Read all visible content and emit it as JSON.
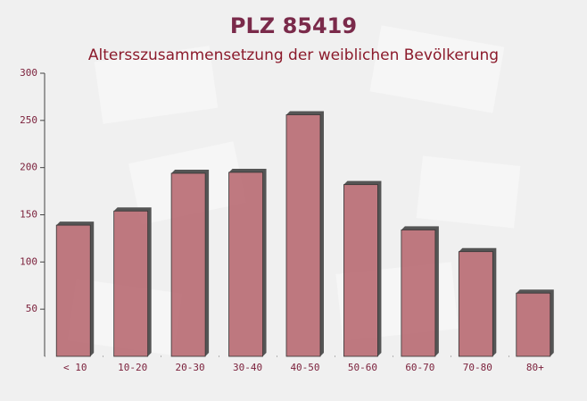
{
  "chart_data": {
    "type": "bar",
    "title": "PLZ 85419",
    "subtitle": "Altersszusammensetzung der weiblichen Bevölkerung",
    "categories": [
      "< 10",
      "10-20",
      "20-30",
      "30-40",
      "40-50",
      "50-60",
      "60-70",
      "70-80",
      "80+"
    ],
    "values": [
      139,
      154,
      194,
      195,
      256,
      182,
      134,
      111,
      67
    ],
    "color": "#b5636b",
    "ylim": [
      0,
      300
    ],
    "yticks": [
      50,
      100,
      150,
      200,
      250,
      300
    ]
  }
}
